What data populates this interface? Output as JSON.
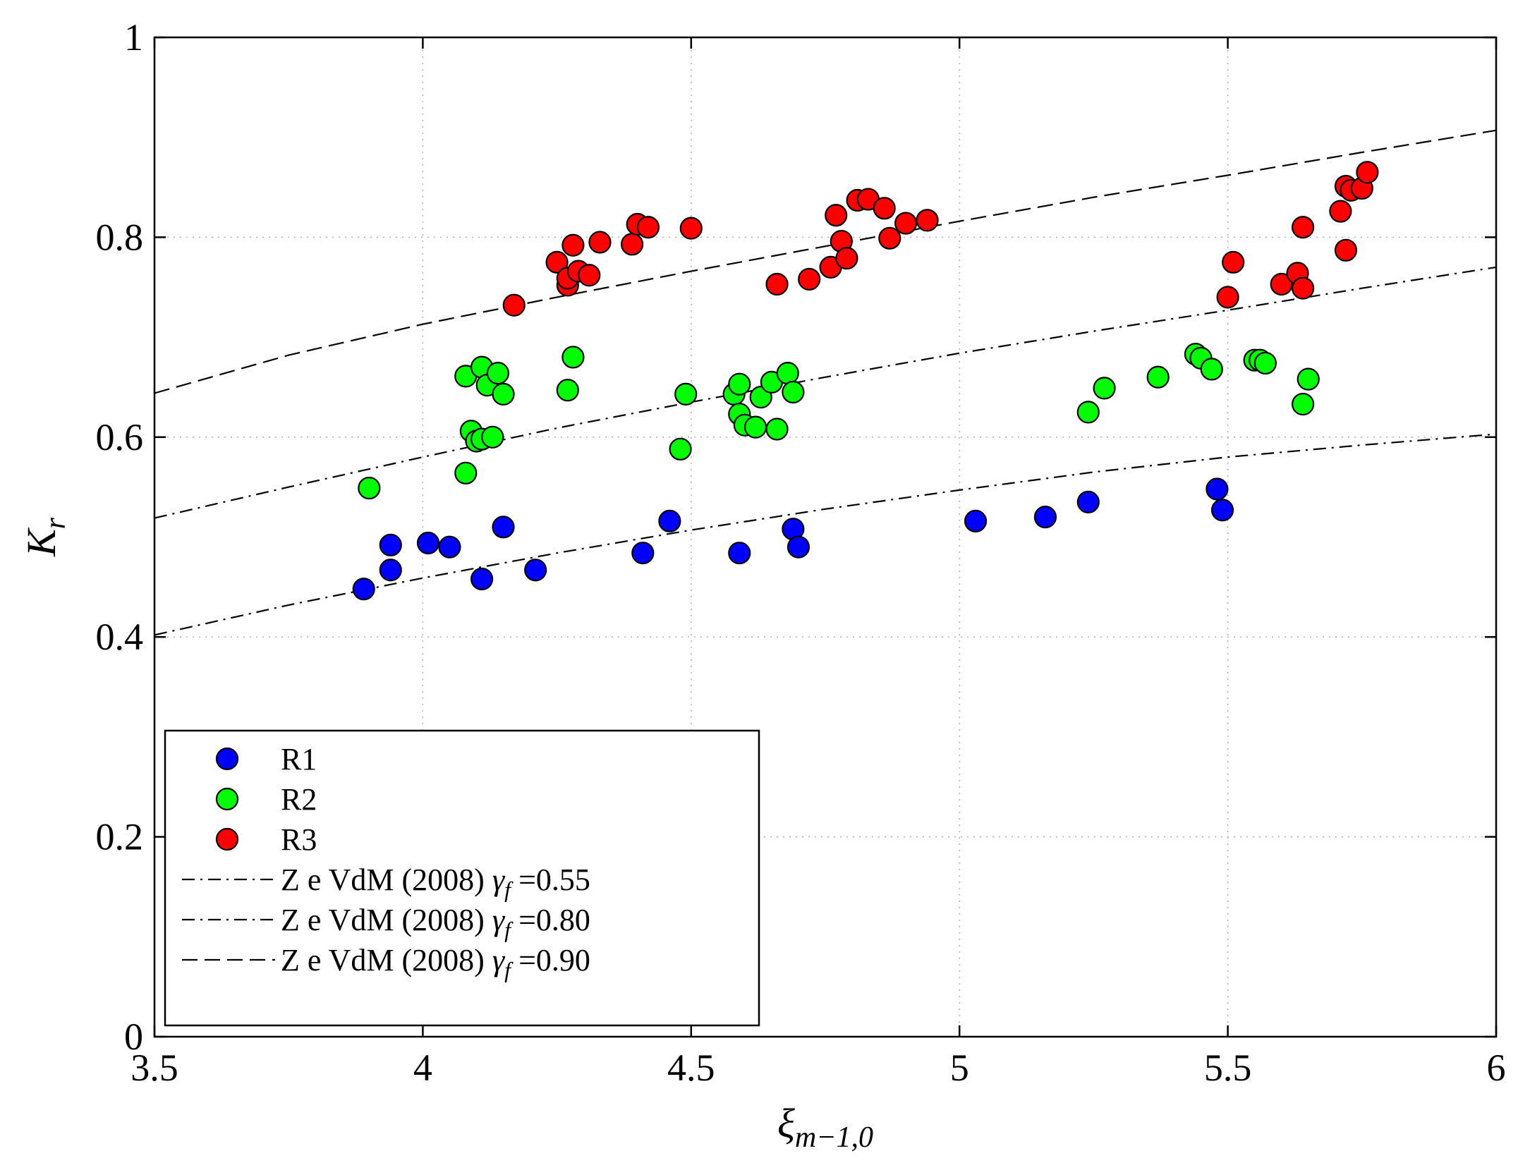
{
  "chart_data": {
    "type": "scatter",
    "title": "",
    "xlabel": "ξ",
    "xlabel_sub": "m−1,0",
    "ylabel": "K",
    "ylabel_sub": "r",
    "xlim": [
      3.5,
      6
    ],
    "ylim": [
      0,
      1
    ],
    "xticks": [
      3.5,
      4,
      4.5,
      5,
      5.5,
      6
    ],
    "xtick_labels": [
      "3.5",
      "4",
      "4.5",
      "5",
      "5.5",
      "6"
    ],
    "yticks": [
      0,
      0.2,
      0.4,
      0.6,
      0.8,
      1
    ],
    "ytick_labels": [
      "0",
      "0.2",
      "0.4",
      "0.6",
      "0.8",
      "1"
    ],
    "grid": true,
    "legend_position": "bottom-left",
    "series": [
      {
        "name": "R1",
        "kind": "scatter",
        "color": "#0000ff",
        "points": [
          [
            3.89,
            0.448
          ],
          [
            3.94,
            0.492
          ],
          [
            3.94,
            0.467
          ],
          [
            4.01,
            0.494
          ],
          [
            4.05,
            0.49
          ],
          [
            4.11,
            0.458
          ],
          [
            4.15,
            0.51
          ],
          [
            4.21,
            0.467
          ],
          [
            4.41,
            0.484
          ],
          [
            4.46,
            0.516
          ],
          [
            4.59,
            0.484
          ],
          [
            4.69,
            0.508
          ],
          [
            4.7,
            0.49
          ],
          [
            5.03,
            0.516
          ],
          [
            5.16,
            0.52
          ],
          [
            5.24,
            0.535
          ],
          [
            5.48,
            0.548
          ],
          [
            5.49,
            0.527
          ]
        ]
      },
      {
        "name": "R2",
        "kind": "scatter",
        "color": "#00ff00",
        "points": [
          [
            3.9,
            0.549
          ],
          [
            4.08,
            0.661
          ],
          [
            4.08,
            0.564
          ],
          [
            4.09,
            0.606
          ],
          [
            4.1,
            0.596
          ],
          [
            4.11,
            0.598
          ],
          [
            4.11,
            0.67
          ],
          [
            4.12,
            0.652
          ],
          [
            4.13,
            0.6
          ],
          [
            4.14,
            0.664
          ],
          [
            4.15,
            0.643
          ],
          [
            4.27,
            0.647
          ],
          [
            4.28,
            0.68
          ],
          [
            4.48,
            0.588
          ],
          [
            4.49,
            0.643
          ],
          [
            4.58,
            0.643
          ],
          [
            4.59,
            0.623
          ],
          [
            4.59,
            0.653
          ],
          [
            4.6,
            0.612
          ],
          [
            4.62,
            0.61
          ],
          [
            4.63,
            0.64
          ],
          [
            4.65,
            0.655
          ],
          [
            4.66,
            0.608
          ],
          [
            4.68,
            0.664
          ],
          [
            4.69,
            0.645
          ],
          [
            5.24,
            0.625
          ],
          [
            5.27,
            0.649
          ],
          [
            5.37,
            0.66
          ],
          [
            5.44,
            0.683
          ],
          [
            5.45,
            0.679
          ],
          [
            5.47,
            0.668
          ],
          [
            5.55,
            0.677
          ],
          [
            5.56,
            0.677
          ],
          [
            5.57,
            0.674
          ],
          [
            5.64,
            0.633
          ],
          [
            5.65,
            0.658
          ]
        ]
      },
      {
        "name": "R3",
        "kind": "scatter",
        "color": "#ff0000",
        "points": [
          [
            4.17,
            0.732
          ],
          [
            4.25,
            0.775
          ],
          [
            4.27,
            0.752
          ],
          [
            4.27,
            0.759
          ],
          [
            4.28,
            0.792
          ],
          [
            4.29,
            0.766
          ],
          [
            4.31,
            0.762
          ],
          [
            4.33,
            0.795
          ],
          [
            4.39,
            0.793
          ],
          [
            4.4,
            0.813
          ],
          [
            4.42,
            0.81
          ],
          [
            4.5,
            0.809
          ],
          [
            4.66,
            0.753
          ],
          [
            4.72,
            0.758
          ],
          [
            4.76,
            0.77
          ],
          [
            4.77,
            0.822
          ],
          [
            4.78,
            0.796
          ],
          [
            4.79,
            0.779
          ],
          [
            4.81,
            0.837
          ],
          [
            4.83,
            0.838
          ],
          [
            4.86,
            0.829
          ],
          [
            4.87,
            0.799
          ],
          [
            4.9,
            0.814
          ],
          [
            4.94,
            0.817
          ],
          [
            5.5,
            0.74
          ],
          [
            5.51,
            0.775
          ],
          [
            5.6,
            0.753
          ],
          [
            5.63,
            0.764
          ],
          [
            5.64,
            0.81
          ],
          [
            5.64,
            0.749
          ],
          [
            5.71,
            0.826
          ],
          [
            5.72,
            0.787
          ],
          [
            5.72,
            0.851
          ],
          [
            5.73,
            0.847
          ],
          [
            5.75,
            0.849
          ],
          [
            5.76,
            0.865
          ]
        ]
      },
      {
        "name": "Z e VdM (2008) γf =0.55",
        "legend_label": "Z e VdM (2008)",
        "legend_symbol": "γ",
        "legend_sub": "f",
        "legend_value": " =0.55",
        "kind": "line",
        "dash": "dashdot",
        "color": "#000000",
        "x": [
          3.5,
          3.75,
          4.0,
          4.25,
          4.5,
          4.75,
          5.0,
          5.25,
          5.5,
          5.75,
          6.0
        ],
        "y": [
          0.402,
          0.432,
          0.459,
          0.484,
          0.507,
          0.528,
          0.547,
          0.565,
          0.58,
          0.592,
          0.603
        ]
      },
      {
        "name": "Z e VdM (2008) γf =0.80",
        "legend_label": "Z e VdM (2008)",
        "legend_symbol": "γ",
        "legend_sub": "f",
        "legend_value": " =0.80",
        "kind": "line",
        "dash": "dashdot",
        "color": "#000000",
        "x": [
          3.5,
          3.75,
          4.0,
          4.25,
          4.5,
          4.75,
          5.0,
          5.25,
          5.5,
          5.75,
          6.0
        ],
        "y": [
          0.519,
          0.55,
          0.58,
          0.609,
          0.635,
          0.66,
          0.684,
          0.706,
          0.727,
          0.749,
          0.77
        ]
      },
      {
        "name": "Z e VdM (2008) γf =0.90",
        "legend_label": "Z e VdM (2008)",
        "legend_symbol": "γ",
        "legend_sub": "f",
        "legend_value": " =0.90",
        "kind": "line",
        "dash": "dashed",
        "color": "#000000",
        "x": [
          3.5,
          3.75,
          4.0,
          4.25,
          4.5,
          4.75,
          5.0,
          5.25,
          5.5,
          5.75,
          6.0
        ],
        "y": [
          0.644,
          0.682,
          0.713,
          0.74,
          0.766,
          0.791,
          0.816,
          0.84,
          0.862,
          0.885,
          0.907
        ]
      }
    ]
  }
}
